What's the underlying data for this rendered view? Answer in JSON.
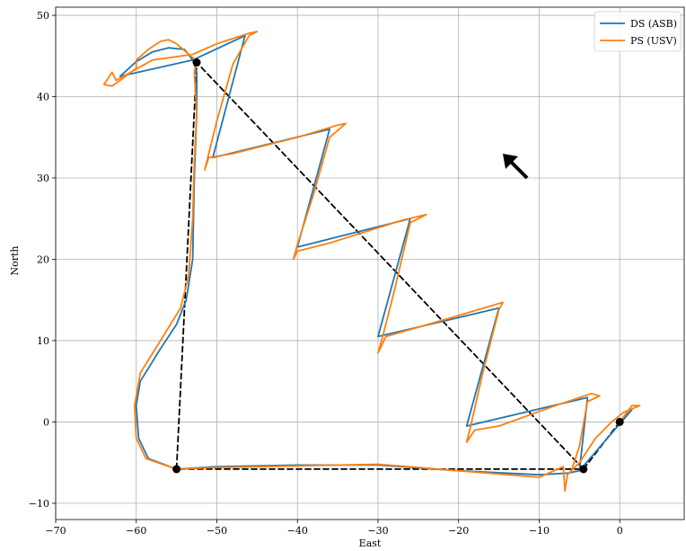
{
  "chart_data": {
    "type": "line",
    "xlabel": "East",
    "ylabel": "North",
    "xlim": [
      -70,
      8
    ],
    "ylim": [
      -12,
      51
    ],
    "xticks": [
      -70,
      -60,
      -50,
      -40,
      -30,
      -20,
      -10,
      0
    ],
    "yticks": [
      -10,
      0,
      10,
      20,
      30,
      40,
      50
    ],
    "xtick_labels": [
      "−70",
      "−60",
      "−50",
      "−40",
      "−30",
      "−20",
      "−10",
      "0"
    ],
    "ytick_labels": [
      "−10",
      "0",
      "10",
      "20",
      "30",
      "40",
      "50"
    ],
    "grid": true,
    "legend_position": "top-right",
    "colors": {
      "ds": "#1f77b4",
      "ps": "#ff7f0e",
      "planned": "#000000"
    },
    "series": [
      {
        "name": "DS (ASB)",
        "color": "#1f77b4",
        "points": [
          [
            0,
            0
          ],
          [
            1.5,
            1.5
          ],
          [
            -5,
            -6
          ],
          [
            -6.5,
            -6.3
          ],
          [
            -10,
            -6.5
          ],
          [
            -20,
            -6
          ],
          [
            -30,
            -5.3
          ],
          [
            -40,
            -5.3
          ],
          [
            -50,
            -5.5
          ],
          [
            -55,
            -5.8
          ],
          [
            -58.5,
            -4.5
          ],
          [
            -59.7,
            -2
          ],
          [
            -60,
            2
          ],
          [
            -59.5,
            5
          ],
          [
            -57,
            9
          ],
          [
            -55,
            12
          ],
          [
            -53.8,
            15
          ],
          [
            -53,
            20
          ],
          [
            -52.8,
            30
          ],
          [
            -52.5,
            38
          ],
          [
            -52.5,
            43
          ],
          [
            -53,
            44.5
          ],
          [
            -54,
            45.8
          ],
          [
            -56,
            46
          ],
          [
            -58,
            45.5
          ],
          [
            -60,
            44.3
          ],
          [
            -62,
            42.5
          ],
          [
            -53,
            44.5
          ],
          [
            -46.5,
            47.5
          ],
          [
            -50.5,
            32.5
          ],
          [
            -36,
            36
          ],
          [
            -40,
            21.5
          ],
          [
            -26,
            25
          ],
          [
            -30,
            10.5
          ],
          [
            -15,
            14
          ],
          [
            -19,
            -0.5
          ],
          [
            -4,
            3
          ],
          [
            -5,
            -6
          ]
        ]
      },
      {
        "name": "PS (USV)",
        "color": "#ff7f0e",
        "points": [
          [
            0,
            0
          ],
          [
            1.5,
            2
          ],
          [
            2.5,
            2
          ],
          [
            0.5,
            1.2
          ],
          [
            -1,
            0
          ],
          [
            -3,
            -2
          ],
          [
            -5,
            -5
          ],
          [
            -6.5,
            -6.5
          ],
          [
            -6.8,
            -8.5
          ],
          [
            -7,
            -5.5
          ],
          [
            -10,
            -6.8
          ],
          [
            -20,
            -6
          ],
          [
            -30,
            -5.2
          ],
          [
            -40,
            -5.4
          ],
          [
            -50,
            -5.6
          ],
          [
            -55,
            -5.8
          ],
          [
            -58.8,
            -4.5
          ],
          [
            -60,
            -2
          ],
          [
            -60.2,
            2
          ],
          [
            -59.5,
            6
          ],
          [
            -57,
            10
          ],
          [
            -54.5,
            14
          ],
          [
            -53.5,
            18
          ],
          [
            -53,
            25
          ],
          [
            -52.8,
            32
          ],
          [
            -52.5,
            38
          ],
          [
            -52.8,
            43
          ],
          [
            -52.5,
            44.5
          ],
          [
            -53,
            44.8
          ],
          [
            -55,
            46.5
          ],
          [
            -56,
            47
          ],
          [
            -57,
            46.8
          ],
          [
            -58.5,
            45.8
          ],
          [
            -60,
            44.5
          ],
          [
            -60,
            43.5
          ],
          [
            -62,
            42
          ],
          [
            -63,
            41.3
          ],
          [
            -64,
            41.5
          ],
          [
            -63,
            43
          ],
          [
            -62.5,
            42
          ],
          [
            -58,
            44.5
          ],
          [
            -53,
            45.2
          ],
          [
            -50,
            46.5
          ],
          [
            -46,
            47.8
          ],
          [
            -45,
            48
          ],
          [
            -46,
            47.5
          ],
          [
            -48,
            44
          ],
          [
            -50,
            37
          ],
          [
            -51,
            33
          ],
          [
            -51.5,
            31
          ],
          [
            -51,
            32.5
          ],
          [
            -48,
            33
          ],
          [
            -40,
            35
          ],
          [
            -35,
            36.5
          ],
          [
            -34,
            36.7
          ],
          [
            -36,
            35
          ],
          [
            -38,
            28
          ],
          [
            -40,
            21.8
          ],
          [
            -40.5,
            20
          ],
          [
            -40,
            21
          ],
          [
            -36,
            22
          ],
          [
            -27,
            24.8
          ],
          [
            -24,
            25.5
          ],
          [
            -26,
            24.5
          ],
          [
            -28,
            16
          ],
          [
            -29.5,
            10.2
          ],
          [
            -30,
            8.5
          ],
          [
            -29,
            10.5
          ],
          [
            -22,
            12.5
          ],
          [
            -14.5,
            14.7
          ],
          [
            -15,
            13.8
          ],
          [
            -17,
            6
          ],
          [
            -18.5,
            -0.5
          ],
          [
            -19,
            -2.5
          ],
          [
            -18,
            -1
          ],
          [
            -15,
            -0.5
          ],
          [
            -8,
            2
          ],
          [
            -3.5,
            3.5
          ],
          [
            -2.5,
            3.2
          ],
          [
            -4,
            2.5
          ],
          [
            -5,
            -3
          ],
          [
            -6,
            -6
          ]
        ]
      },
      {
        "name": "",
        "color": "#000000",
        "dashed": true,
        "points": [
          [
            0,
            0
          ],
          [
            -4.5,
            -5.8
          ],
          [
            -55,
            -5.8
          ],
          [
            -52.5,
            44.2
          ],
          [
            -4.5,
            -5.8
          ]
        ]
      }
    ],
    "waypoints": [
      [
        0,
        0
      ],
      [
        -4.5,
        -5.8
      ],
      [
        -55,
        -5.8
      ],
      [
        -52.5,
        44.2
      ]
    ],
    "arrow": {
      "x": -11.5,
      "y": 30,
      "direction": "north-west",
      "color": "#000000"
    },
    "legend": [
      {
        "label": "DS (ASB)",
        "color": "#1f77b4"
      },
      {
        "label": "PS (USV)",
        "color": "#ff7f0e"
      }
    ]
  }
}
